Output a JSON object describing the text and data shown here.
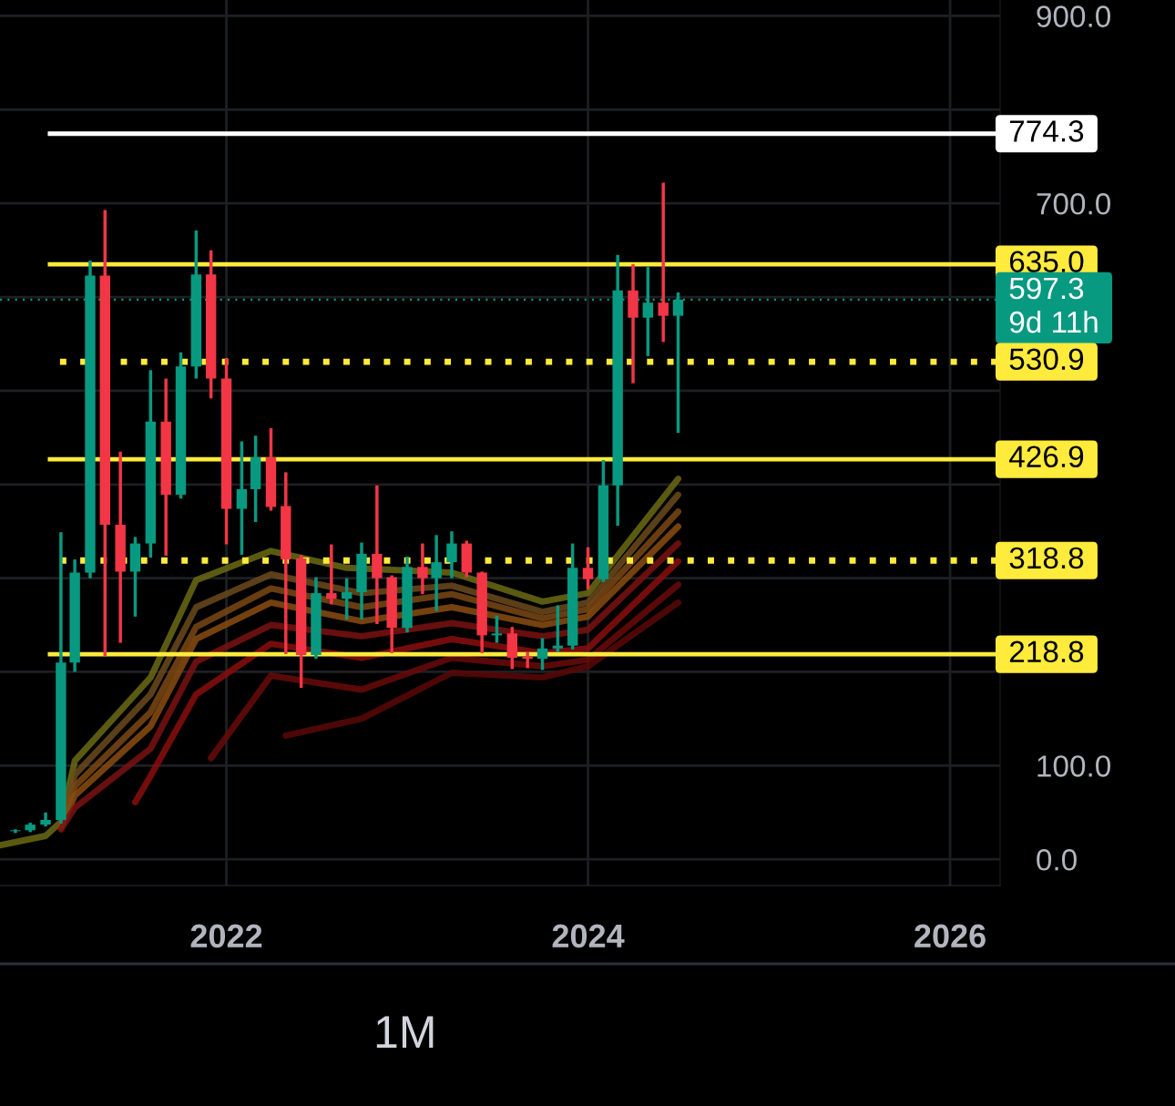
{
  "chart_data": {
    "type": "candlestick",
    "x": [
      "2020-11",
      "2020-12",
      "2021-01",
      "2021-02",
      "2021-03",
      "2021-04",
      "2021-05",
      "2021-06",
      "2021-07",
      "2021-08",
      "2021-09",
      "2021-10",
      "2021-11",
      "2021-12",
      "2022-01",
      "2022-02",
      "2022-03",
      "2022-04",
      "2022-05",
      "2022-06",
      "2022-07",
      "2022-08",
      "2022-09",
      "2022-10",
      "2022-11",
      "2022-12",
      "2023-01",
      "2023-02",
      "2023-03",
      "2023-04",
      "2023-05",
      "2023-06",
      "2023-07",
      "2023-08",
      "2023-09",
      "2023-10",
      "2023-11",
      "2023-12",
      "2024-01",
      "2024-02",
      "2024-03",
      "2024-04",
      "2024-05",
      "2024-06",
      "2024-07"
    ],
    "ohlc": [
      [
        30,
        32,
        28,
        31
      ],
      [
        31,
        39,
        29,
        37
      ],
      [
        37,
        50,
        35,
        42
      ],
      [
        42,
        349,
        38,
        210
      ],
      [
        210,
        320,
        200,
        306
      ],
      [
        306,
        639,
        300,
        623
      ],
      [
        623,
        693,
        217,
        357
      ],
      [
        357,
        435,
        231,
        307
      ],
      [
        307,
        344,
        259,
        337
      ],
      [
        337,
        522,
        322,
        467
      ],
      [
        467,
        513,
        324,
        389
      ],
      [
        389,
        541,
        385,
        526
      ],
      [
        526,
        671,
        513,
        624
      ],
      [
        624,
        650,
        492,
        513
      ],
      [
        513,
        535,
        336,
        374
      ],
      [
        374,
        446,
        325,
        395
      ],
      [
        395,
        452,
        360,
        429
      ],
      [
        429,
        460,
        372,
        376
      ],
      [
        377,
        413,
        219,
        320
      ],
      [
        321,
        325,
        183,
        218
      ],
      [
        218,
        301,
        214,
        284
      ],
      [
        284,
        336,
        272,
        278
      ],
      [
        278,
        300,
        256,
        285
      ],
      [
        285,
        338,
        256,
        326
      ],
      [
        326,
        399,
        251,
        300
      ],
      [
        301,
        303,
        220,
        247
      ],
      [
        247,
        323,
        242,
        312
      ],
      [
        312,
        337,
        283,
        300
      ],
      [
        300,
        346,
        265,
        317
      ],
      [
        317,
        350,
        300,
        337
      ],
      [
        337,
        340,
        301,
        306
      ],
      [
        306,
        307,
        220,
        239
      ],
      [
        239,
        260,
        231,
        241
      ],
      [
        241,
        248,
        203,
        215
      ],
      [
        216,
        221,
        204,
        214
      ],
      [
        214,
        236,
        202,
        225
      ],
      [
        225,
        271,
        221,
        228
      ],
      [
        228,
        337,
        224,
        311
      ],
      [
        311,
        333,
        288,
        299
      ],
      [
        299,
        426,
        296,
        399
      ],
      [
        399,
        645,
        356,
        607
      ],
      [
        607,
        635,
        508,
        578
      ],
      [
        578,
        632,
        537,
        594
      ],
      [
        594,
        722,
        552,
        580
      ],
      [
        580,
        605,
        455,
        597.3
      ]
    ],
    "colors": [
      "#089981",
      "#089981",
      "#089981",
      "#089981",
      "#089981",
      "#089981",
      "#f23645",
      "#f23645",
      "#089981",
      "#089981",
      "#f23645",
      "#089981",
      "#089981",
      "#f23645",
      "#f23645",
      "#089981",
      "#089981",
      "#f23645",
      "#f23645",
      "#f23645",
      "#089981",
      "#f23645",
      "#089981",
      "#089981",
      "#f23645",
      "#f23645",
      "#089981",
      "#f23645",
      "#089981",
      "#089981",
      "#f23645",
      "#f23645",
      "#089981",
      "#f23645",
      "#f23645",
      "#089981",
      "#089981",
      "#089981",
      "#f23645",
      "#089981",
      "#089981",
      "#f23645",
      "#089981",
      "#f23645",
      "#089981"
    ],
    "series": [
      {
        "type": "line",
        "color": "#6b6a14",
        "x": [
          "2020-10",
          "2021-01",
          "2021-02",
          "2021-03",
          "2021-08",
          "2021-11",
          "2022-04",
          "2022-09",
          "2023-04",
          "2023-10",
          "2024-01",
          "2024-07"
        ],
        "values": [
          15,
          25,
          40,
          105,
          194,
          298,
          329,
          311,
          306,
          275,
          284,
          406
        ]
      },
      {
        "type": "line",
        "color": "#6b4a1c",
        "x": [
          "2021-02",
          "2021-03",
          "2021-08",
          "2021-11",
          "2022-04",
          "2022-10",
          "2023-04",
          "2023-10",
          "2024-01",
          "2024-07"
        ],
        "values": [
          38,
          90,
          176,
          269,
          304,
          284,
          292,
          264,
          274,
          389
        ]
      },
      {
        "type": "line",
        "color": "#7a4814",
        "x": [
          "2021-02",
          "2021-03",
          "2021-08",
          "2021-11",
          "2022-04",
          "2022-10",
          "2023-04",
          "2023-10",
          "2024-01",
          "2024-07"
        ],
        "values": [
          36,
          78,
          157,
          248,
          289,
          269,
          283,
          257,
          267,
          371
        ]
      },
      {
        "type": "line",
        "color": "#8a4c10",
        "x": [
          "2021-02",
          "2021-03",
          "2021-08",
          "2021-11",
          "2022-04",
          "2022-10",
          "2023-04",
          "2023-10",
          "2024-01",
          "2024-07"
        ],
        "values": [
          34,
          68,
          142,
          235,
          274,
          254,
          269,
          250,
          259,
          355
        ]
      },
      {
        "type": "line",
        "color": "#7a1212",
        "x": [
          "2021-02",
          "2021-03",
          "2021-08",
          "2021-11",
          "2022-04",
          "2022-10",
          "2023-04",
          "2023-10",
          "2024-01",
          "2024-07"
        ],
        "values": [
          32,
          55,
          118,
          211,
          250,
          238,
          252,
          238,
          245,
          337
        ]
      },
      {
        "type": "line",
        "color": "#8a0e0e",
        "x": [
          "2021-07",
          "2021-08",
          "2021-11",
          "2022-04",
          "2022-10",
          "2023-04",
          "2023-10",
          "2024-01",
          "2024-07"
        ],
        "values": [
          61,
          89,
          176,
          230,
          215,
          235,
          220,
          225,
          318
        ]
      },
      {
        "type": "line",
        "color": "#6a0a0a",
        "x": [
          "2021-12",
          "2022-04",
          "2022-10",
          "2023-04",
          "2023-10",
          "2024-01",
          "2024-07"
        ],
        "values": [
          108,
          196,
          181,
          215,
          206,
          213,
          293
        ]
      },
      {
        "type": "line",
        "color": "#5a0808",
        "x": [
          "2022-05",
          "2022-10",
          "2023-04",
          "2023-10",
          "2024-01",
          "2024-07"
        ],
        "values": [
          132,
          150,
          199,
          194,
          206,
          274
        ]
      }
    ],
    "xlim": [
      "2020-10-01",
      "2026-04-12"
    ],
    "xticks": [
      {
        "value": "2022-01-01",
        "label": "2022"
      },
      {
        "value": "2024-01-01",
        "label": "2024"
      },
      {
        "value": "2026-01-01",
        "label": "2026"
      }
    ],
    "ylim": [
      -28,
      917
    ],
    "yticks": [
      {
        "value": 0,
        "label": "0.0"
      },
      {
        "value": 100,
        "label": "100.0"
      },
      {
        "value": 200,
        "label": null
      },
      {
        "value": 300,
        "label": null
      },
      {
        "value": 400,
        "label": null
      },
      {
        "value": 500,
        "label": null
      },
      {
        "value": 600,
        "label": null
      },
      {
        "value": 700,
        "label": "700.0"
      },
      {
        "value": 800,
        "label": null
      },
      {
        "value": 900,
        "label": "900.0"
      }
    ],
    "grid": true,
    "ref_lines": [
      {
        "axis": "y",
        "value": 774.3,
        "label": "774.3",
        "color": "#ffffff",
        "line_style": "solid"
      },
      {
        "axis": "y",
        "value": 635.0,
        "label": "635.0",
        "color": "#ffeb3b",
        "line_style": "solid"
      },
      {
        "axis": "y",
        "value": 597.3,
        "label": "597.3\n9d 11h",
        "color": "#089981",
        "line_style": "dotted"
      },
      {
        "axis": "y",
        "value": 530.9,
        "label": "530.9",
        "color": "#ffeb3b",
        "line_style": "dotted"
      },
      {
        "axis": "y",
        "value": 426.9,
        "label": "426.9",
        "color": "#ffeb3b",
        "line_style": "solid"
      },
      {
        "axis": "y",
        "value": 318.8,
        "label": "318.8",
        "color": "#ffeb3b",
        "line_style": "dotted"
      },
      {
        "axis": "y",
        "value": 218.8,
        "label": "218.8",
        "color": "#ffeb3b",
        "line_style": "solid"
      }
    ],
    "annotations": [
      "1M"
    ]
  }
}
